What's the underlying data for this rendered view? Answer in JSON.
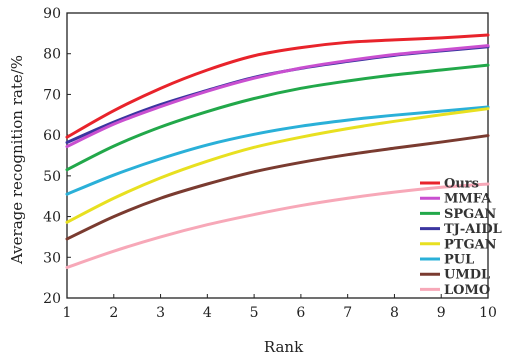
{
  "chart_data": {
    "type": "line",
    "xlabel": "Rank",
    "ylabel": "Average recognition rate/%",
    "xlim": [
      1,
      10
    ],
    "ylim": [
      20,
      90
    ],
    "xticks": [
      1,
      2,
      3,
      4,
      5,
      6,
      7,
      8,
      9,
      10
    ],
    "yticks": [
      20,
      30,
      40,
      50,
      60,
      70,
      80,
      90
    ],
    "grid": false,
    "legend_position": "bottom-right",
    "x": [
      1,
      2,
      3,
      4,
      5,
      6,
      7,
      8,
      9,
      10
    ],
    "series": [
      {
        "name": "Ours",
        "color": "#e8232b",
        "values": [
          59.5,
          66.0,
          71.5,
          76.0,
          79.5,
          81.5,
          82.8,
          83.4,
          83.9,
          84.6
        ]
      },
      {
        "name": "MMFA",
        "color": "#c94fd0",
        "values": [
          57.2,
          62.7,
          67.0,
          70.8,
          74.0,
          76.5,
          78.3,
          79.8,
          80.9,
          82.0
        ]
      },
      {
        "name": "SPGAN",
        "color": "#22a84a",
        "values": [
          51.5,
          57.3,
          62.0,
          65.8,
          69.0,
          71.5,
          73.3,
          74.8,
          76.0,
          77.2
        ]
      },
      {
        "name": "TJ-AIDL",
        "color": "#3b35a0",
        "values": [
          58.2,
          63.2,
          67.5,
          71.0,
          74.2,
          76.4,
          78.1,
          79.6,
          80.7,
          81.7
        ]
      },
      {
        "name": "PTGAN",
        "color": "#e8e020",
        "values": [
          38.6,
          44.5,
          49.5,
          53.6,
          57.0,
          59.5,
          61.6,
          63.4,
          65.0,
          66.5
        ]
      },
      {
        "name": "PUL",
        "color": "#2ab0d8",
        "values": [
          45.5,
          50.2,
          54.2,
          57.6,
          60.2,
          62.2,
          63.7,
          64.9,
          65.9,
          66.9
        ]
      },
      {
        "name": "UMDL",
        "color": "#7a3b30",
        "values": [
          34.5,
          40.0,
          44.5,
          48.0,
          51.0,
          53.3,
          55.2,
          56.8,
          58.3,
          59.9
        ]
      },
      {
        "name": "LOMO",
        "color": "#f7a8b8",
        "values": [
          27.5,
          31.5,
          35.0,
          38.0,
          40.5,
          42.7,
          44.5,
          46.0,
          47.2,
          48.0
        ]
      }
    ]
  }
}
